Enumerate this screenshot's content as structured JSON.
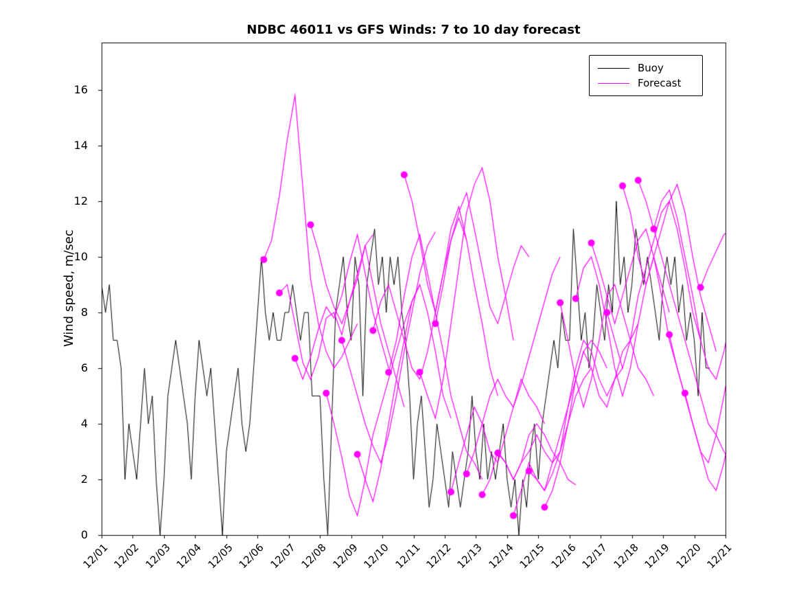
{
  "chart_data": {
    "type": "line",
    "title": "NDBC 46011 vs GFS Winds: 7 to 10 day forecast",
    "xlabel": "",
    "ylabel": "Wind speed, m/sec",
    "xlim": [
      0,
      20
    ],
    "ylim": [
      0,
      17.7
    ],
    "grid": false,
    "legend_position": "top-right",
    "x_tick_labels": [
      "12/01",
      "12/02",
      "12/03",
      "12/04",
      "12/05",
      "12/06",
      "12/07",
      "12/08",
      "12/09",
      "12/10",
      "12/11",
      "12/12",
      "12/13",
      "12/14",
      "12/15",
      "12/16",
      "12/17",
      "12/18",
      "12/19",
      "12/20",
      "12/21"
    ],
    "y_ticks": [
      0,
      2,
      4,
      6,
      8,
      10,
      12,
      14,
      16
    ],
    "series": [
      {
        "name": "Buoy",
        "color": "#000000",
        "line_width": 1,
        "start_day": 0,
        "step_days": 0.125,
        "values": [
          9,
          8,
          9,
          7,
          7,
          6,
          2,
          4,
          3,
          2,
          4,
          6,
          4,
          5,
          2,
          0,
          2,
          5,
          6,
          7,
          6,
          5,
          4,
          2,
          5,
          7,
          6,
          5,
          6,
          4,
          2,
          0,
          3,
          4,
          5,
          6,
          4,
          3,
          4,
          6,
          8,
          10,
          8,
          7,
          8,
          7,
          7,
          8,
          8,
          9,
          8,
          7,
          8,
          8,
          5,
          5,
          5,
          2,
          0,
          4,
          8,
          9,
          10,
          8,
          7,
          10,
          9,
          5,
          9,
          10,
          11,
          9,
          10,
          8,
          10,
          9,
          10,
          8,
          7,
          5,
          2,
          4,
          5,
          3,
          1,
          2,
          4,
          3,
          2,
          1,
          3,
          2,
          1,
          2,
          3,
          5,
          3,
          2,
          4,
          2,
          3,
          2,
          3,
          4,
          2,
          1,
          2,
          0,
          2,
          1,
          3,
          4,
          2,
          4,
          5,
          6,
          7,
          6,
          8,
          7,
          7,
          11,
          9,
          7,
          8,
          6,
          7,
          9,
          8,
          7,
          9,
          8,
          12,
          9,
          10,
          8,
          9,
          11,
          10,
          9,
          10,
          9,
          8,
          7,
          9,
          10,
          9,
          10,
          8,
          9,
          7,
          8,
          7,
          5,
          8,
          6,
          6
        ]
      },
      {
        "name": "Forecast",
        "color": "#FF00FF",
        "line_width": 1.2,
        "marker": "filled-circle-at-start",
        "marker_radius_px": 5,
        "step_days": 0.25,
        "segments": [
          {
            "start_day": 5.2,
            "values": [
              9.9,
              10.6,
              12.2,
              14.2,
              15.8,
              12.5,
              9.2,
              7.6,
              6.6,
              6.0,
              6.4,
              7.0,
              7.6
            ]
          },
          {
            "start_day": 5.7,
            "values": [
              8.7,
              9.0,
              7.6,
              6.2,
              5.6,
              6.4,
              7.8,
              8.0,
              7.2,
              8.4,
              9.4,
              10.4,
              10.8
            ]
          },
          {
            "start_day": 6.2,
            "values": [
              6.35,
              5.6,
              6.4,
              7.4,
              8.2,
              7.8,
              8.6,
              9.8,
              10.8,
              9.4,
              8.0,
              7.0,
              6.0
            ]
          },
          {
            "start_day": 6.7,
            "values": [
              11.15,
              10.2,
              9.0,
              8.2,
              7.6,
              8.4,
              9.2,
              10.4,
              9.0,
              7.6,
              6.6,
              5.6,
              4.6
            ]
          },
          {
            "start_day": 7.2,
            "values": [
              5.1,
              4.0,
              2.8,
              1.4,
              0.7,
              2.0,
              3.6,
              4.6,
              5.6,
              6.6,
              7.6,
              8.4,
              9.0
            ]
          },
          {
            "start_day": 7.7,
            "values": [
              7.0,
              6.0,
              5.0,
              4.0,
              3.2,
              2.6,
              3.6,
              5.0,
              6.6,
              8.0,
              9.4,
              10.4,
              10.9
            ]
          },
          {
            "start_day": 8.2,
            "values": [
              2.9,
              2.0,
              1.2,
              2.4,
              4.0,
              5.6,
              7.0,
              8.4,
              9.0,
              8.0,
              6.6,
              5.0,
              4.2
            ]
          },
          {
            "start_day": 8.7,
            "values": [
              7.35,
              8.4,
              9.0,
              8.0,
              7.0,
              6.0,
              5.6,
              6.6,
              8.0,
              9.4,
              10.6,
              11.4,
              10.6
            ]
          },
          {
            "start_day": 9.2,
            "values": [
              5.85,
              7.0,
              8.6,
              10.0,
              10.8,
              9.4,
              8.0,
              6.6,
              5.0,
              4.0,
              3.0,
              2.6,
              2.0
            ]
          },
          {
            "start_day": 9.7,
            "values": [
              12.95,
              12.0,
              10.6,
              9.0,
              8.0,
              9.4,
              11.0,
              11.8,
              10.6,
              9.0,
              7.6,
              6.0,
              5.0
            ]
          },
          {
            "start_day": 10.2,
            "values": [
              5.85,
              5.0,
              4.2,
              5.6,
              7.6,
              9.6,
              11.6,
              12.6,
              13.2,
              12.0,
              10.0,
              8.6,
              7.0
            ]
          },
          {
            "start_day": 10.7,
            "values": [
              7.6,
              9.0,
              10.6,
              11.6,
              12.3,
              11.0,
              9.6,
              8.2,
              7.6,
              8.6,
              9.6,
              10.4,
              10.0
            ]
          },
          {
            "start_day": 11.2,
            "values": [
              1.55,
              2.6,
              3.6,
              4.6,
              4.0,
              3.0,
              2.6,
              3.6,
              4.6,
              5.6,
              5.0,
              4.6,
              4.0
            ]
          },
          {
            "start_day": 11.7,
            "values": [
              2.2,
              3.0,
              4.0,
              5.0,
              5.6,
              5.0,
              4.6,
              5.4,
              6.4,
              7.4,
              8.4,
              9.4,
              10.0
            ]
          },
          {
            "start_day": 12.2,
            "values": [
              1.45,
              2.0,
              3.0,
              2.6,
              2.0,
              2.6,
              3.6,
              4.0,
              3.6,
              3.0,
              2.6,
              2.0,
              1.8
            ]
          },
          {
            "start_day": 12.7,
            "values": [
              2.95,
              2.6,
              2.0,
              2.6,
              3.0,
              3.6,
              3.0,
              2.6,
              3.0,
              4.0,
              5.0,
              5.6,
              6.0
            ]
          },
          {
            "start_day": 13.2,
            "values": [
              0.7,
              1.6,
              2.6,
              2.0,
              1.6,
              2.6,
              3.6,
              4.6,
              5.6,
              6.6,
              7.0,
              6.6,
              6.0
            ]
          },
          {
            "start_day": 13.7,
            "values": [
              2.3,
              2.0,
              1.6,
              2.2,
              3.0,
              4.6,
              6.0,
              7.0,
              6.6,
              5.6,
              5.0,
              5.6,
              6.0
            ]
          },
          {
            "start_day": 14.2,
            "values": [
              1.0,
              1.6,
              2.6,
              4.0,
              5.6,
              6.6,
              6.0,
              5.0,
              4.6,
              5.6,
              6.6,
              7.0,
              7.6
            ]
          },
          {
            "start_day": 14.7,
            "values": [
              8.35,
              7.0,
              5.6,
              4.6,
              5.6,
              7.0,
              8.6,
              9.0,
              8.0,
              7.0,
              6.0,
              5.6,
              5.0
            ]
          },
          {
            "start_day": 15.2,
            "values": [
              8.5,
              9.6,
              10.0,
              9.0,
              7.6,
              6.0,
              5.0,
              6.0,
              7.6,
              9.0,
              10.0,
              9.0,
              8.0
            ]
          },
          {
            "start_day": 15.7,
            "values": [
              10.5,
              9.6,
              8.6,
              7.6,
              8.6,
              9.6,
              10.6,
              11.0,
              10.0,
              8.6,
              7.0,
              6.0,
              5.0
            ]
          },
          {
            "start_day": 16.2,
            "values": [
              8.0,
              7.0,
              6.0,
              7.0,
              8.6,
              9.6,
              10.6,
              11.6,
              12.0,
              11.0,
              9.6,
              8.0,
              7.0
            ]
          },
          {
            "start_day": 16.7,
            "values": [
              12.55,
              11.6,
              10.0,
              9.0,
              10.0,
              11.0,
              12.0,
              12.6,
              11.6,
              10.0,
              8.6,
              7.6,
              6.6
            ]
          },
          {
            "start_day": 17.2,
            "values": [
              12.75,
              12.0,
              11.0,
              10.0,
              9.0,
              8.0,
              7.0,
              6.0,
              5.0,
              4.0,
              3.6,
              3.0,
              2.6
            ]
          },
          {
            "start_day": 17.7,
            "values": [
              11.0,
              12.0,
              12.4,
              11.4,
              10.0,
              8.6,
              7.0,
              6.0,
              5.6,
              6.6,
              8.0,
              9.6,
              10.6
            ]
          },
          {
            "start_day": 18.2,
            "values": [
              7.2,
              6.0,
              5.0,
              4.0,
              3.0,
              2.0,
              1.6,
              2.6,
              4.0,
              5.6,
              7.0,
              8.6,
              9.6
            ]
          },
          {
            "start_day": 18.7,
            "values": [
              5.1,
              4.0,
              3.0,
              2.6,
              3.6,
              5.0,
              6.6,
              8.0,
              9.0,
              10.0,
              10.6,
              11.0,
              11.2
            ]
          },
          {
            "start_day": 19.2,
            "values": [
              8.9,
              9.6,
              10.2,
              10.8,
              11.0,
              10.4,
              9.6,
              8.8,
              8.0,
              7.2,
              6.6,
              6.0,
              5.6
            ]
          }
        ]
      }
    ]
  }
}
